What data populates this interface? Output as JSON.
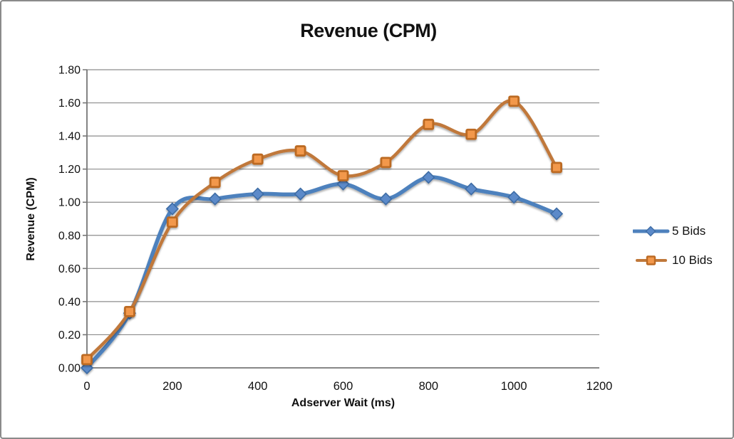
{
  "window": {
    "background": "#ffffff",
    "border_color": "#8a8a8a"
  },
  "chart_data": {
    "type": "line",
    "title": "Revenue (CPM)",
    "xlabel": "Adserver Wait (ms)",
    "ylabel": "Revenue (CPM)",
    "x": [
      0,
      100,
      200,
      300,
      400,
      500,
      600,
      700,
      800,
      900,
      1000,
      1100
    ],
    "series": [
      {
        "name": "5 Bids",
        "marker": "diamond",
        "line_color": "#4e81bd",
        "marker_fill": "#5b8ac9",
        "marker_stroke": "#3e6ca5",
        "line_width": 5.5,
        "values": [
          0.0,
          0.33,
          0.96,
          1.02,
          1.05,
          1.05,
          1.11,
          1.02,
          1.15,
          1.08,
          1.03,
          0.93
        ]
      },
      {
        "name": "10 Bids",
        "marker": "square",
        "line_color": "#c0783a",
        "marker_fill": "#f2984c",
        "marker_stroke": "#bc6a24",
        "line_width": 4.5,
        "values": [
          0.05,
          0.34,
          0.88,
          1.12,
          1.26,
          1.31,
          1.16,
          1.24,
          1.47,
          1.41,
          1.61,
          1.21
        ]
      }
    ],
    "xlim": [
      0,
      1200
    ],
    "ylim": [
      0,
      1.8
    ],
    "x_ticks": [
      0,
      200,
      400,
      600,
      800,
      1000,
      1200
    ],
    "y_ticks": [
      "0.00",
      "0.20",
      "0.40",
      "0.60",
      "0.80",
      "1.00",
      "1.20",
      "1.40",
      "1.60",
      "1.80"
    ],
    "grid": true,
    "smooth": true,
    "legend_position": "right",
    "grid_color": "#8c8c8c",
    "axis_color": "#767676",
    "tick_label_color": "#111111"
  }
}
